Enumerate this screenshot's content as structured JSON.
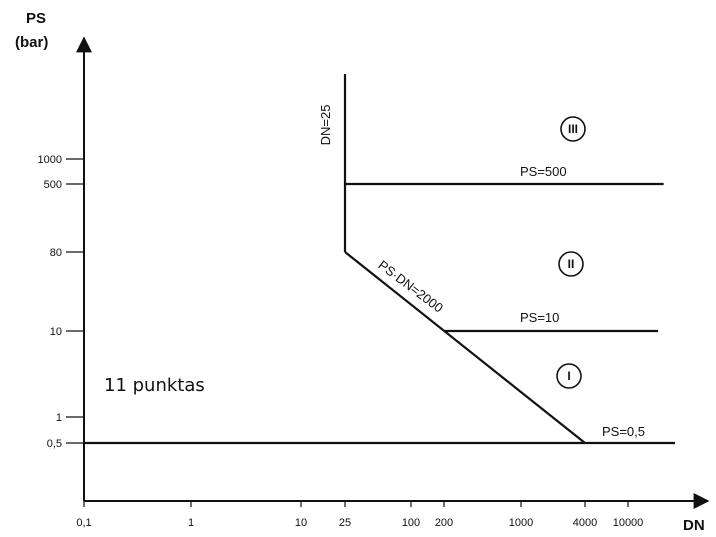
{
  "chart_data": {
    "type": "line",
    "title": "",
    "y_axis": {
      "label_line1": "PS",
      "label_line2": "(bar)",
      "scale": "log",
      "ticks": [
        {
          "value": 0.5,
          "label": "0,5"
        },
        {
          "value": 1,
          "label": "1"
        },
        {
          "value": 10,
          "label": "10"
        },
        {
          "value": 80,
          "label": "80"
        },
        {
          "value": 500,
          "label": "500"
        },
        {
          "value": 1000,
          "label": "1000"
        }
      ]
    },
    "x_axis": {
      "label": "DN",
      "scale": "log",
      "ticks": [
        {
          "value": 0.1,
          "label": "0,1"
        },
        {
          "value": 1,
          "label": "1"
        },
        {
          "value": 10,
          "label": "10"
        },
        {
          "value": 25,
          "label": "25"
        },
        {
          "value": 100,
          "label": "100"
        },
        {
          "value": 200,
          "label": "200"
        },
        {
          "value": 1000,
          "label": "1000"
        },
        {
          "value": 4000,
          "label": "4000"
        },
        {
          "value": 10000,
          "label": "10000"
        }
      ]
    },
    "lines": [
      {
        "name": "DN=25",
        "points": [
          [
            25,
            80
          ],
          [
            25,
            5000
          ]
        ]
      },
      {
        "name": "PS=500",
        "points": [
          [
            25,
            500
          ],
          [
            20000,
            500
          ]
        ]
      },
      {
        "name": "PS·DN=2000",
        "points": [
          [
            25,
            80
          ],
          [
            4000,
            0.5
          ]
        ]
      },
      {
        "name": "PS=10",
        "points": [
          [
            200,
            10
          ],
          [
            18000,
            10
          ]
        ]
      },
      {
        "name": "PS=0,5",
        "points": [
          [
            0.1,
            0.5
          ],
          [
            25000,
            0.5
          ]
        ]
      }
    ],
    "line_labels": {
      "dn25": "DN=25",
      "ps500": "PS=500",
      "psdn": "PS·DN=2000",
      "ps10": "PS=10",
      "ps05": "PS=0,5"
    },
    "zones": [
      "III",
      "II",
      "I"
    ],
    "annotation": "11 punktas"
  }
}
